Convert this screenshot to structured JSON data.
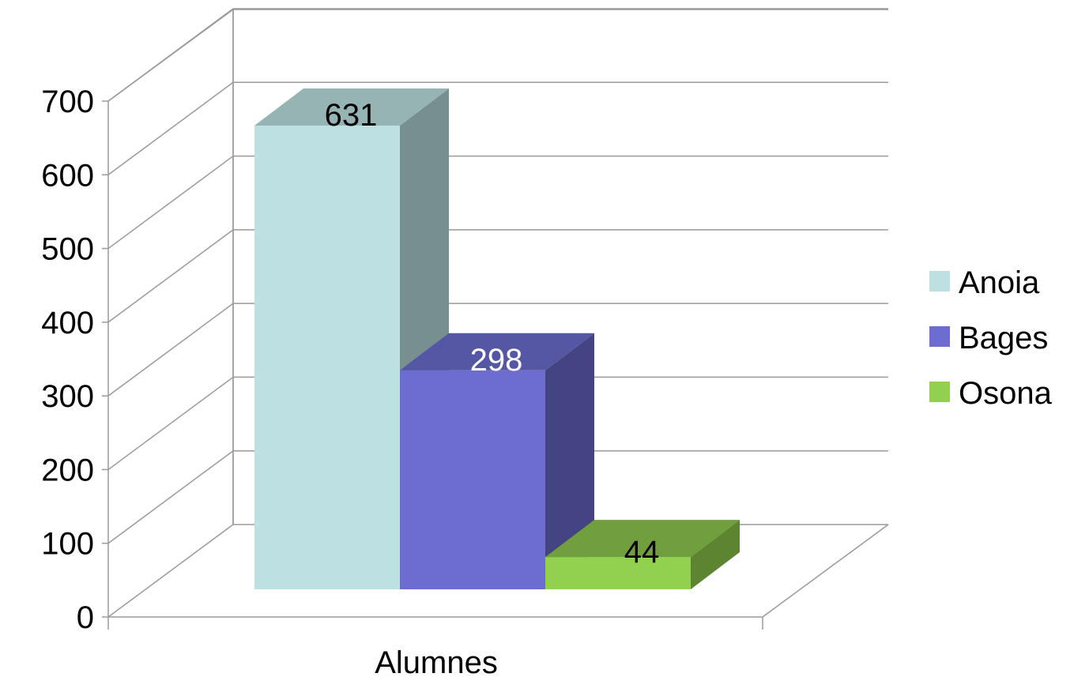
{
  "chart_data": {
    "type": "bar",
    "categories": [
      "Alumnes"
    ],
    "series": [
      {
        "name": "Anoia",
        "values": [
          631
        ],
        "color": "#BDE1E2",
        "side_color": "#788F90",
        "top_color": "#97B4B5",
        "label_color": "#000000"
      },
      {
        "name": "Bages",
        "values": [
          298
        ],
        "color": "#6C6DCE",
        "side_color": "#444483",
        "top_color": "#5657A4",
        "label_color": "#FFFFFF"
      },
      {
        "name": "Osona",
        "values": [
          44
        ],
        "color": "#92D050",
        "side_color": "#5C8431",
        "top_color": "#719F3D",
        "label_color": "#000000"
      }
    ],
    "ylim": [
      0,
      700
    ],
    "yticks": [
      "0",
      "100",
      "200",
      "300",
      "400",
      "500",
      "600",
      "700"
    ],
    "grid": true,
    "legend": "right",
    "three_d": true
  }
}
